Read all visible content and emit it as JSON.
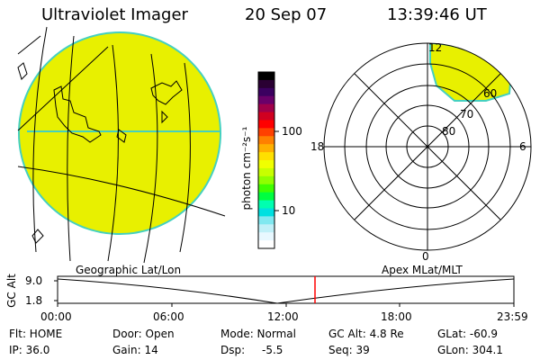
{
  "header": {
    "title": "Ultraviolet Imager",
    "date": "20 Sep 07",
    "time": "13:39:46 UT"
  },
  "colorbar": {
    "unit_label": "photon cm⁻²s⁻¹",
    "tick_100": "100",
    "tick_10": "10",
    "colors": [
      "#000000",
      "#2a0033",
      "#3b0060",
      "#6a006a",
      "#a0004a",
      "#d00020",
      "#ff0000",
      "#ff4000",
      "#ff8000",
      "#ffb000",
      "#ffe000",
      "#f0ff00",
      "#c8ff00",
      "#90ff00",
      "#40ff00",
      "#00ff40",
      "#00ffb0",
      "#00e0e0",
      "#80e8f0",
      "#c0f0f8",
      "#e8f8ff",
      "#ffffff"
    ]
  },
  "polar": {
    "mlt_12": "12",
    "mlt_18": "18",
    "mlt_6": "6",
    "mlt_0": "0",
    "lat_80": "80",
    "lat_70": "70",
    "lat_60": "60"
  },
  "timeline": {
    "left_label": "Geographic Lat/Lon",
    "right_label": "Apex MLat/MLT",
    "y_axis_label": "GC Alt",
    "y_top": "9.0",
    "y_bottom": "1.8",
    "ticks": [
      "00:00",
      "06:00",
      "12:00",
      "18:00",
      "23:59"
    ]
  },
  "status": {
    "flt": "Flt: HOME",
    "ip": "IP: 36.0",
    "door": "Door: Open",
    "gain": "Gain: 14",
    "mode": "Mode: Normal",
    "dsp_label": "Dsp:",
    "dsp_value": "-5.5",
    "gc_alt": "GC Alt: 4.8 Re",
    "seq": "Seq: 39",
    "glat": "GLat: -60.9",
    "glon": "GLon: 304.1"
  },
  "colors": {
    "emission": "#e8f000",
    "limb": "#44d0c0",
    "current_time_marker": "#ff0000",
    "lines": "#000000"
  }
}
